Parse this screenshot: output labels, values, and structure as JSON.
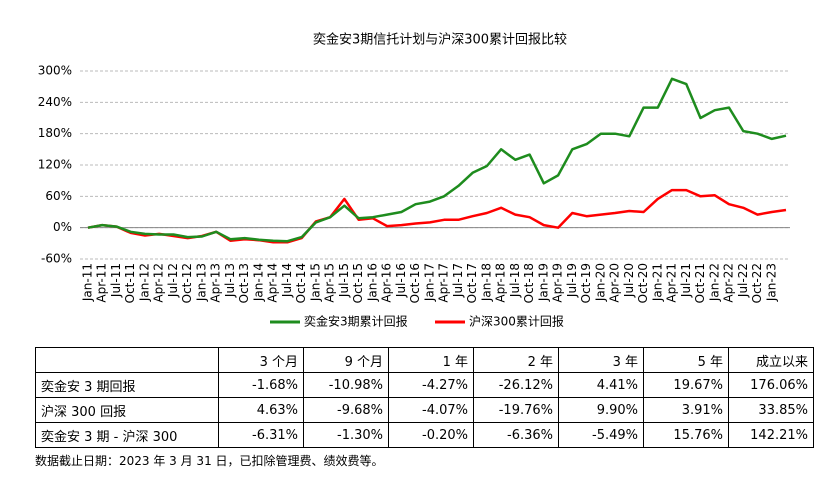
{
  "chart_data": {
    "type": "line",
    "title": "奕金安3期信托计划与沪深300累计回报比较",
    "categories": [
      "Jan-11",
      "Apr-11",
      "Jul-11",
      "Oct-11",
      "Jan-12",
      "Apr-12",
      "Jul-12",
      "Oct-12",
      "Jan-13",
      "Apr-13",
      "Jul-13",
      "Oct-13",
      "Jan-14",
      "Apr-14",
      "Jul-14",
      "Oct-14",
      "Jan-15",
      "Apr-15",
      "Jul-15",
      "Oct-15",
      "Jan-16",
      "Apr-16",
      "Jul-16",
      "Oct-16",
      "Jan-17",
      "Apr-17",
      "Jul-17",
      "Oct-17",
      "Jan-18",
      "Apr-18",
      "Jul-18",
      "Oct-18",
      "Jan-19",
      "Apr-19",
      "Jul-19",
      "Oct-19",
      "Jan-20",
      "Apr-20",
      "Jul-20",
      "Oct-20",
      "Jan-21",
      "Apr-21",
      "Jul-21",
      "Oct-21",
      "Jan-22",
      "Apr-22",
      "Jul-22",
      "Oct-22",
      "Jan-23",
      null
    ],
    "series": [
      {
        "name": "奕金安3期累计回报",
        "color": "#1e8c1e",
        "values": [
          0,
          5,
          2,
          -8,
          -12,
          -13,
          -13,
          -18,
          -17,
          -8,
          -22,
          -20,
          -23,
          -25,
          -26,
          -18,
          10,
          20,
          42,
          18,
          20,
          25,
          30,
          45,
          50,
          60,
          80,
          105,
          118,
          150,
          130,
          140,
          85,
          100,
          150,
          160,
          180,
          180,
          175,
          230,
          230,
          285,
          275,
          210,
          225,
          230,
          185,
          180,
          170,
          176.06
        ]
      },
      {
        "name": "沪深300累计回报",
        "color": "#ff0000",
        "values": [
          0,
          5,
          2,
          -10,
          -15,
          -12,
          -16,
          -20,
          -16,
          -8,
          -25,
          -22,
          -24,
          -28,
          -28,
          -20,
          12,
          20,
          55,
          15,
          18,
          3,
          5,
          8,
          10,
          15,
          15,
          22,
          28,
          38,
          25,
          20,
          5,
          0,
          28,
          22,
          25,
          28,
          32,
          30,
          55,
          72,
          72,
          60,
          62,
          45,
          38,
          25,
          30,
          33.85
        ]
      }
    ],
    "ylim": [
      -60,
      300
    ],
    "yticks": [
      {
        "value": -60,
        "label": "-60%"
      },
      {
        "value": 0,
        "label": "0%"
      },
      {
        "value": 60,
        "label": "60%"
      },
      {
        "value": 120,
        "label": "120%"
      },
      {
        "value": 180,
        "label": "180%"
      },
      {
        "value": 240,
        "label": "240%"
      },
      {
        "value": 300,
        "label": "300%"
      }
    ],
    "grid": true,
    "legend": "bottom"
  },
  "table": {
    "header": [
      "3 个月",
      "9 个月",
      "1 年",
      "2 年",
      "3 年",
      "5 年",
      "成立以来"
    ],
    "rows": [
      {
        "label": "奕金安 3 期回报",
        "cells": [
          "-1.68%",
          "-10.98%",
          "-4.27%",
          "-26.12%",
          "4.41%",
          "19.67%",
          "176.06%"
        ]
      },
      {
        "label": "沪深 300 回报",
        "cells": [
          "4.63%",
          "-9.68%",
          "-4.07%",
          "-19.76%",
          "9.90%",
          "3.91%",
          "33.85%"
        ]
      },
      {
        "label": "奕金安 3 期 - 沪深 300",
        "cells": [
          "-6.31%",
          "-1.30%",
          "-0.20%",
          "-6.36%",
          "-5.49%",
          "15.76%",
          "142.21%"
        ]
      }
    ],
    "note": "数据截止日期：2023 年 3 月 31 日，已扣除管理费、绩效费等。"
  }
}
